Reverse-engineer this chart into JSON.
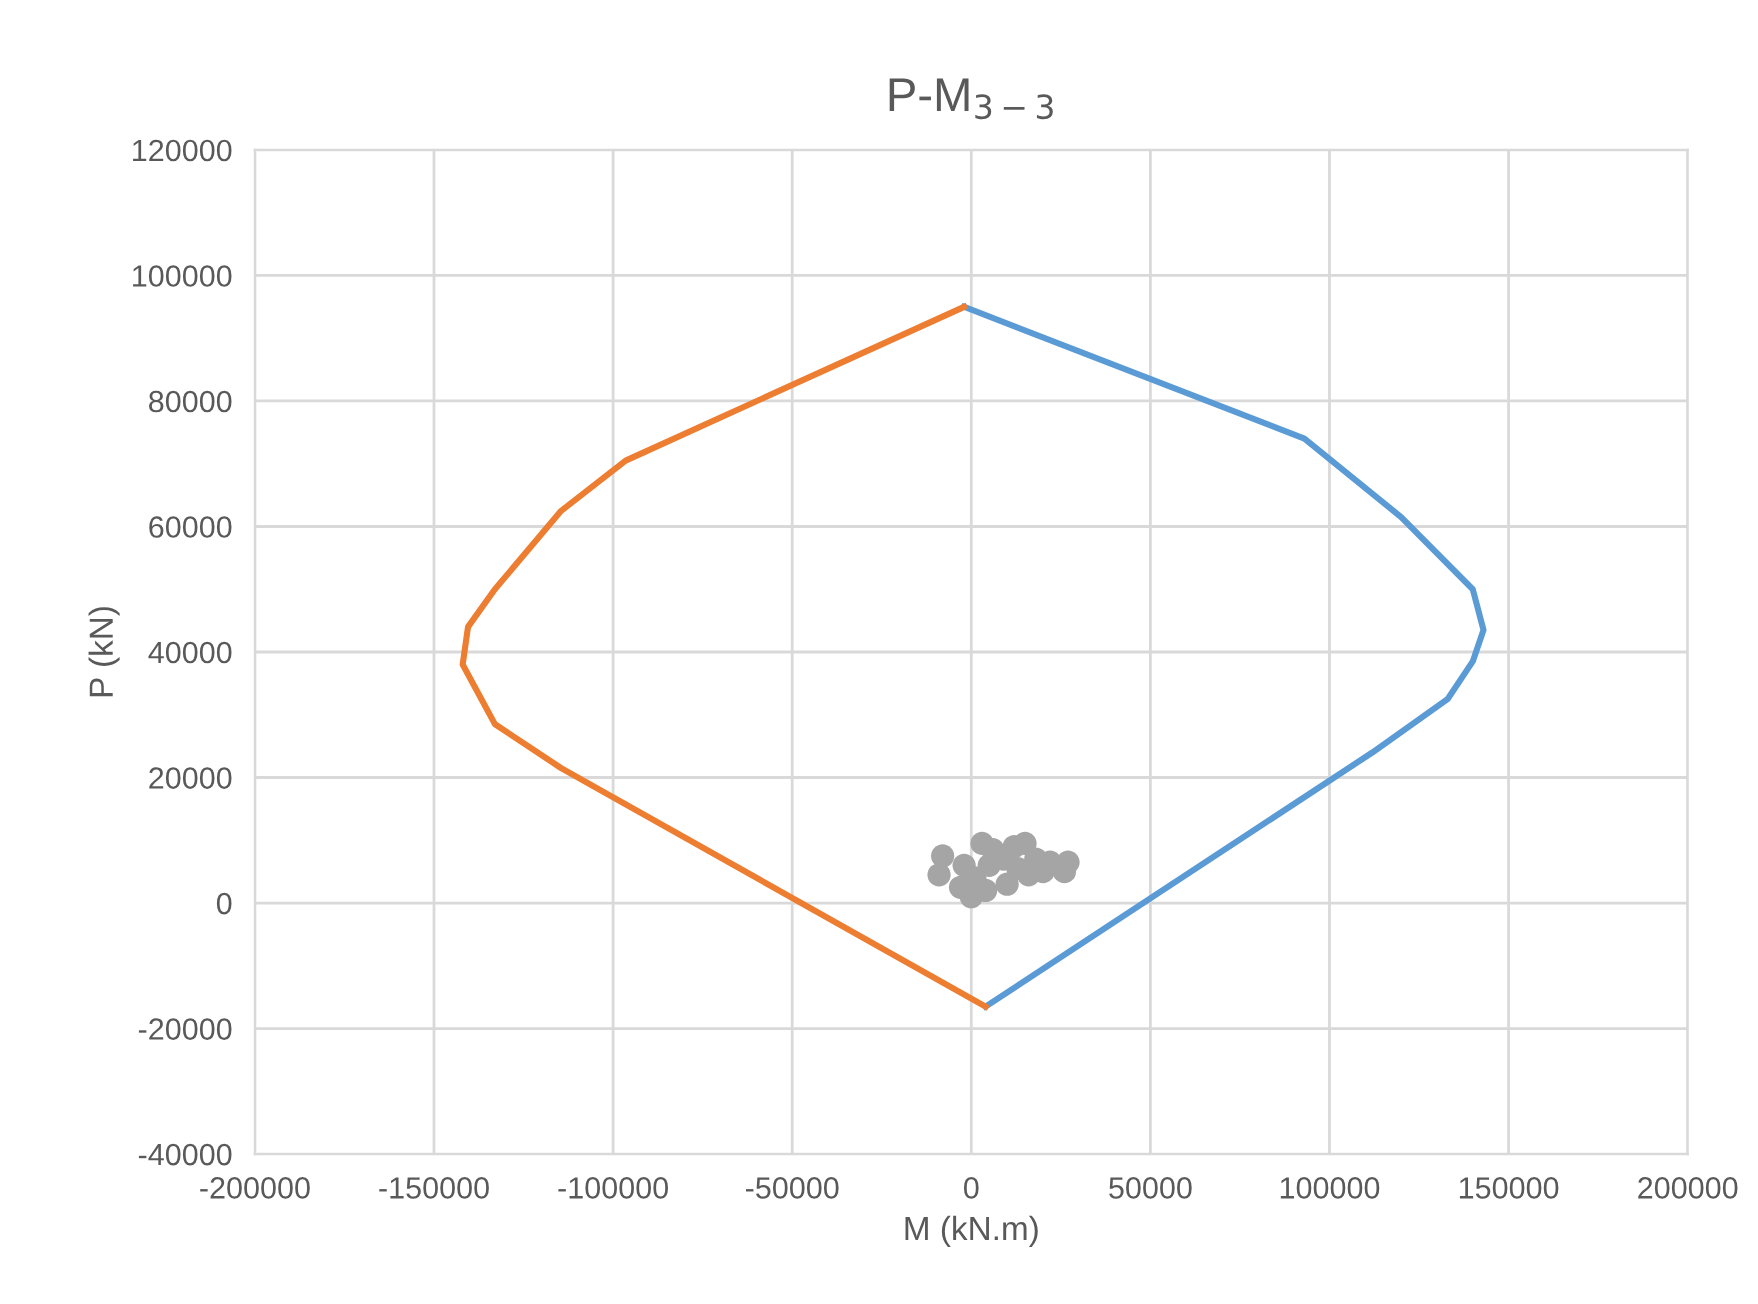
{
  "chart_data": {
    "type": "line",
    "title": "P-M$_{3−3}$",
    "xlabel": "M (kN.m)",
    "ylabel": "P (kN)",
    "xlim": [
      -200000,
      200000
    ],
    "xticks": [
      -200000,
      -150000,
      -100000,
      -50000,
      0,
      50000,
      100000,
      150000,
      200000
    ],
    "ylim": [
      -40000,
      120000
    ],
    "yticks": [
      -40000,
      -20000,
      0,
      20000,
      40000,
      60000,
      80000,
      100000,
      120000
    ],
    "grid": true,
    "line_style": "solid",
    "series": [
      {
        "color": "#5b9bd5",
        "x": [
          -2000,
          93000,
          120000,
          140000,
          143000,
          140000,
          133000,
          112000,
          4000
        ],
        "values": [
          95000,
          74000,
          61500,
          50000,
          43500,
          38500,
          32500,
          24000,
          -16500
        ]
      },
      {
        "color": "#ed7d31",
        "x": [
          -2000,
          -96500,
          -114500,
          -133000,
          -140500,
          -142000,
          -133000,
          -114500,
          4000
        ],
        "values": [
          95000,
          70500,
          62500,
          50000,
          44000,
          38000,
          28500,
          21500,
          -16500
        ]
      },
      {
        "type": "scatter",
        "color": "#a5a5a5",
        "marker": "circle",
        "x": [
          -8000,
          -9000,
          -3000,
          -2000,
          0,
          1000,
          3000,
          4000,
          5000,
          6000,
          9000,
          10000,
          12000,
          13000,
          15000,
          16000,
          18000,
          20000,
          22000,
          27000,
          26000
        ],
        "values": [
          7500,
          4500,
          2500,
          6000,
          1000,
          4000,
          9500,
          2000,
          6000,
          8500,
          7000,
          3000,
          9000,
          5500,
          9500,
          4500,
          7000,
          5000,
          6500,
          6500,
          5000
        ]
      }
    ]
  }
}
